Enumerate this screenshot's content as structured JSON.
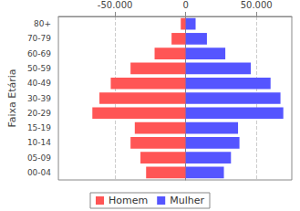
{
  "chart_data": {
    "type": "bar",
    "orientation": "horizontal",
    "stacked": true,
    "ylabel": "Faixa Etária",
    "categories": [
      "00-04",
      "05-09",
      "10-14",
      "15-19",
      "20-29",
      "30-39",
      "40-49",
      "50-59",
      "60-69",
      "70-79",
      "80+"
    ],
    "series": [
      {
        "name": "Homem",
        "color": "#ff5555",
        "values": [
          -28000,
          -32000,
          -39000,
          -36000,
          -66000,
          -61000,
          -53000,
          -39000,
          -22000,
          -10000,
          -3500
        ]
      },
      {
        "name": "Mulher",
        "color": "#5555ff",
        "values": [
          27000,
          32000,
          38000,
          37000,
          69000,
          67000,
          60000,
          46000,
          28000,
          15000,
          7000
        ]
      }
    ],
    "xlim": [
      -90000,
      75000
    ],
    "xticks": [
      {
        "value": -50000,
        "label": "-50.000"
      },
      0,
      {
        "value": 50000,
        "label": "50.000"
      }
    ],
    "grid": true,
    "legend": "bottom"
  }
}
